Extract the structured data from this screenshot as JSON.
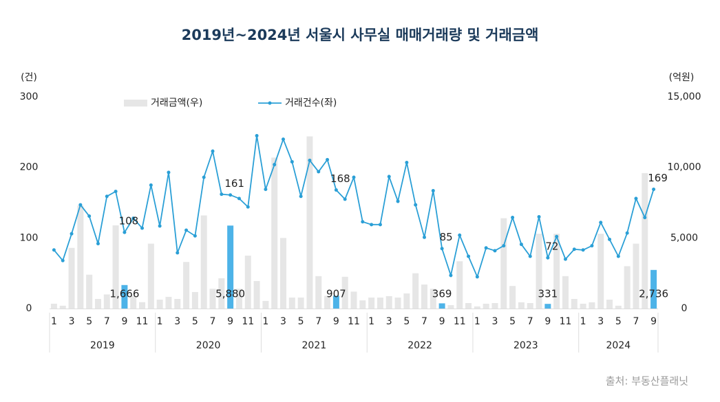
{
  "chart_data": {
    "type": "bar-line",
    "title": "2019년~2024년 서울시 사무실 매매거래량 및 거래금액",
    "y_unit": "(건)",
    "y2_unit": "(억원)",
    "source": "출처: 부동산플래닛",
    "years": [
      "2019",
      "2020",
      "2021",
      "2022",
      "2023",
      "2024"
    ],
    "months": [
      [
        "1",
        null,
        "3",
        null,
        "5",
        null,
        "7",
        null,
        "9",
        null,
        "11",
        null
      ],
      [
        "1",
        null,
        "3",
        null,
        "5",
        null,
        "7",
        null,
        "9",
        null,
        "11",
        null
      ],
      [
        "1",
        null,
        "3",
        null,
        "5",
        null,
        "7",
        null,
        "9",
        null,
        "11",
        null
      ],
      [
        "1",
        null,
        "3",
        null,
        "5",
        null,
        "7",
        null,
        "9",
        null,
        "11",
        null
      ],
      [
        "1",
        null,
        "3",
        null,
        "5",
        null,
        "7",
        null,
        "9",
        null,
        "11",
        null
      ],
      [
        "1",
        null,
        "3",
        null,
        "5",
        null,
        "7",
        null,
        "9"
      ]
    ],
    "ylim": [
      0,
      300
    ],
    "yticks": [
      0,
      100,
      200,
      300
    ],
    "y2lim": [
      0,
      15000
    ],
    "y2ticks": [
      {
        "value": 0,
        "label": "0"
      },
      {
        "value": 5000,
        "label": "5,000"
      },
      {
        "value": 10000,
        "label": "10,000"
      },
      {
        "value": 15000,
        "label": "15,000"
      }
    ],
    "highlight_color": "#4db3e8",
    "series": [
      {
        "name": "거래금액(우)",
        "kind": "bar",
        "axis": "y2",
        "color": "#e6e6e6",
        "values": [
          340,
          200,
          4300,
          7300,
          2400,
          680,
          1000,
          5900,
          1666,
          900,
          450,
          4600,
          630,
          830,
          680,
          3300,
          1170,
          6600,
          1400,
          2150,
          5880,
          1400,
          3750,
          1950,
          540,
          10700,
          5000,
          780,
          780,
          12200,
          2300,
          900,
          907,
          2250,
          1200,
          580,
          780,
          780,
          880,
          780,
          1070,
          2500,
          1700,
          1400,
          369,
          240,
          3350,
          390,
          150,
          340,
          390,
          6400,
          1600,
          440,
          390,
          5300,
          331,
          5300,
          2300,
          680,
          340,
          440,
          5300,
          630,
          200,
          3000,
          4600,
          9600,
          2736
        ],
        "value_labels": [
          null,
          null,
          null,
          null,
          null,
          null,
          null,
          null,
          "1,666",
          null,
          null,
          null,
          null,
          null,
          null,
          null,
          null,
          null,
          null,
          null,
          "5,880",
          null,
          null,
          null,
          null,
          null,
          null,
          null,
          null,
          null,
          null,
          null,
          "907",
          null,
          null,
          null,
          null,
          null,
          null,
          null,
          null,
          null,
          null,
          null,
          "369",
          null,
          null,
          null,
          null,
          null,
          null,
          null,
          null,
          null,
          null,
          null,
          "331",
          null,
          null,
          null,
          null,
          null,
          null,
          null,
          null,
          null,
          null,
          null,
          "2,736"
        ]
      },
      {
        "name": "거래건수(좌)",
        "kind": "line",
        "axis": "y",
        "color": "#2a9fd6",
        "values": [
          83,
          68,
          106,
          147,
          131,
          92,
          159,
          166,
          108,
          128,
          114,
          175,
          117,
          193,
          79,
          111,
          103,
          186,
          223,
          162,
          161,
          156,
          144,
          245,
          169,
          204,
          240,
          208,
          159,
          210,
          194,
          211,
          168,
          155,
          186,
          123,
          119,
          119,
          187,
          152,
          207,
          147,
          101,
          167,
          85,
          47,
          104,
          74,
          45,
          86,
          82,
          89,
          129,
          91,
          74,
          130,
          72,
          102,
          70,
          84,
          83,
          89,
          122,
          98,
          74,
          107,
          156,
          129,
          169
        ]
      }
    ]
  }
}
